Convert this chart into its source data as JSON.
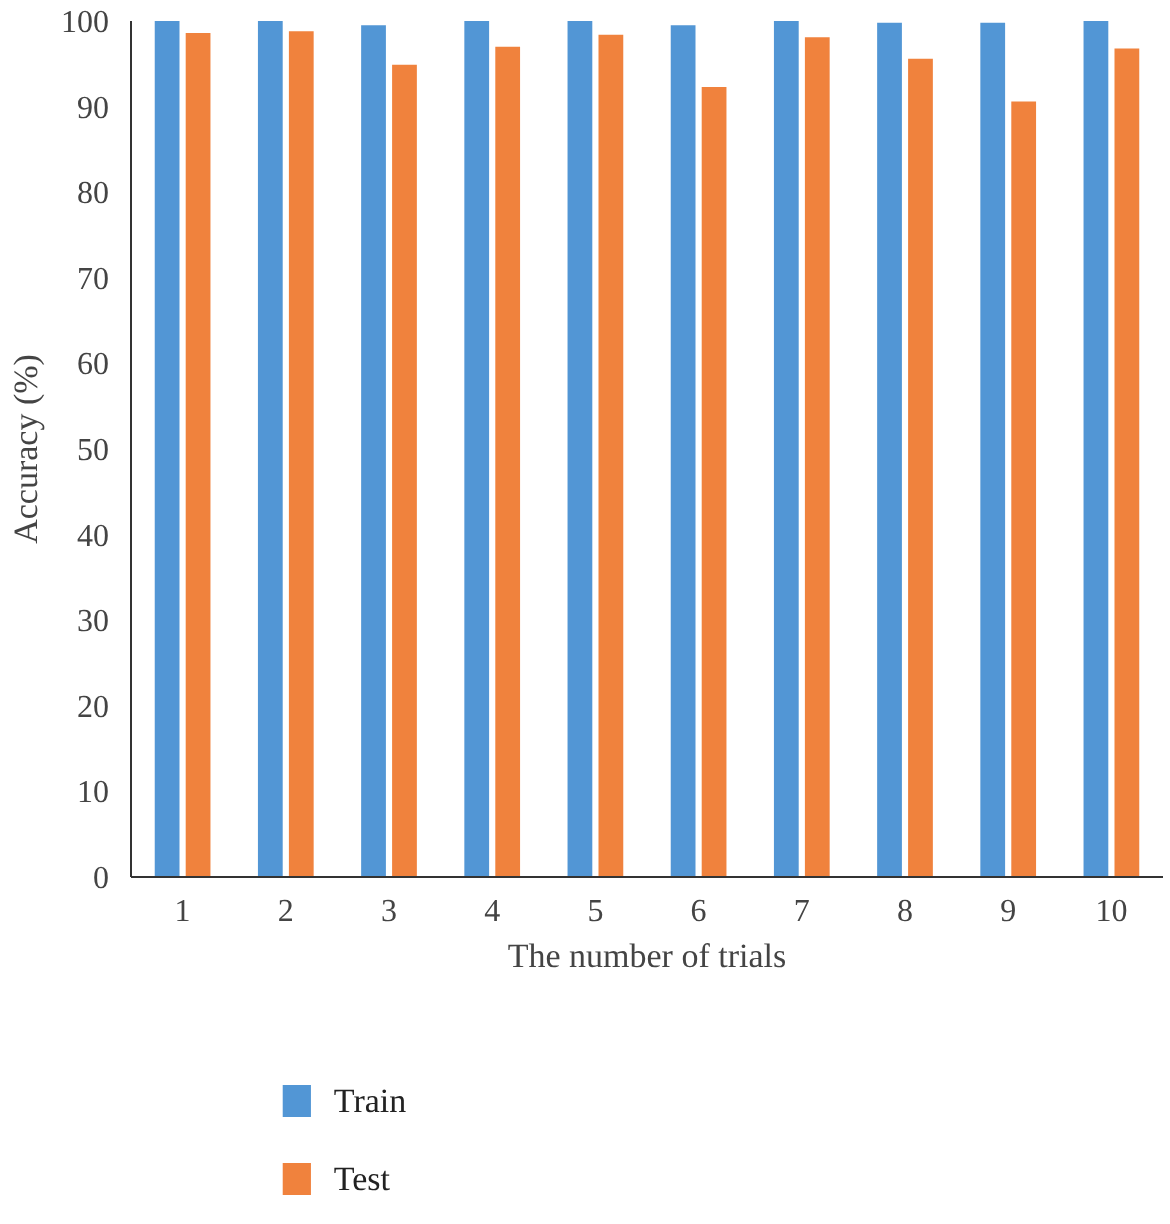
{
  "chart_data": {
    "type": "bar",
    "xlabel": "The number of trials",
    "ylabel": "Accuracy (%)",
    "categories": [
      "1",
      "2",
      "3",
      "4",
      "5",
      "6",
      "7",
      "8",
      "9",
      "10"
    ],
    "series": [
      {
        "name": "Train",
        "color": "#5296d5",
        "values": [
          100,
          100,
          99.5,
          100,
          100,
          99.5,
          100,
          99.8,
          99.8,
          100
        ]
      },
      {
        "name": "Test",
        "color": "#f0823d",
        "values": [
          98.6,
          98.8,
          94.9,
          97.0,
          98.4,
          92.3,
          98.1,
          95.6,
          90.6,
          96.8
        ]
      }
    ],
    "ylim": [
      0,
      100
    ],
    "yticks": [
      0,
      10,
      20,
      30,
      40,
      50,
      60,
      70,
      80,
      90,
      100
    ],
    "grid": false,
    "legend": "bottom"
  }
}
